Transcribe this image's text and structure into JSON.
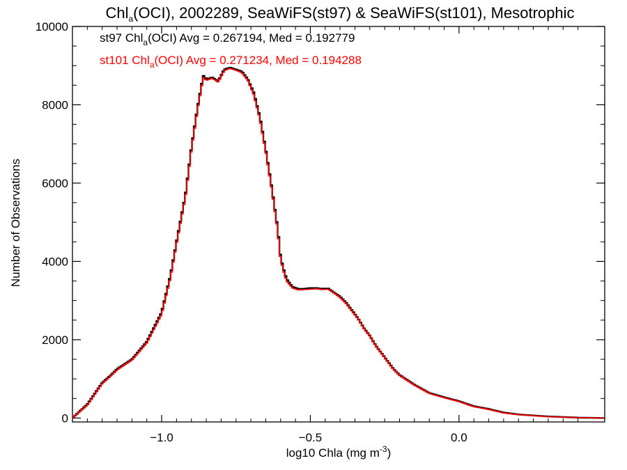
{
  "chart_data": {
    "type": "line",
    "title": {
      "prefix": "Chl",
      "sub": "a",
      "suffix": "(OCI), 2002289, SeaWiFS(st97) & SeaWiFS(st101), Mesotrophic"
    },
    "xlabel": {
      "prefix": "log10 Chla (mg m",
      "sup": "-3",
      "suffix": ")"
    },
    "ylabel": "Number of Observations",
    "xlim": [
      -1.3,
      0.49
    ],
    "ylim": [
      -100,
      10000
    ],
    "x_ticks": [
      -1.0,
      -0.5,
      0.0
    ],
    "x_tick_labels": [
      "−1.0",
      "−0.5",
      "0.0"
    ],
    "y_ticks": [
      0,
      2000,
      4000,
      6000,
      8000,
      10000
    ],
    "y_tick_labels": [
      "0",
      "2000",
      "4000",
      "6000",
      "8000",
      "10000"
    ],
    "legend": [
      {
        "pre": "st97 Chl",
        "sub": "a",
        "post": "(OCI) Avg = 0.267194, Med = 0.192779",
        "color": "#000000"
      },
      {
        "pre": "st101 Chl",
        "sub": "a",
        "post": "(OCI) Avg = 0.271234, Med = 0.194288",
        "color": "#ff0000"
      }
    ],
    "step_style": "histogram",
    "series": [
      {
        "color": "#000000",
        "x": [
          -1.3,
          -1.25,
          -1.2,
          -1.17,
          -1.15,
          -1.1,
          -1.05,
          -1.0,
          -0.97,
          -0.95,
          -0.92,
          -0.9,
          -0.88,
          -0.86,
          -0.85,
          -0.83,
          -0.81,
          -0.79,
          -0.77,
          -0.75,
          -0.73,
          -0.71,
          -0.69,
          -0.67,
          -0.65,
          -0.63,
          -0.61,
          -0.6,
          -0.59,
          -0.58,
          -0.56,
          -0.54,
          -0.52,
          -0.5,
          -0.48,
          -0.46,
          -0.44,
          -0.42,
          -0.4,
          -0.38,
          -0.36,
          -0.34,
          -0.32,
          -0.3,
          -0.28,
          -0.25,
          -0.22,
          -0.2,
          -0.15,
          -0.1,
          -0.05,
          0.0,
          0.05,
          0.1,
          0.15,
          0.2,
          0.3,
          0.4,
          0.49
        ],
        "y": [
          0,
          350,
          900,
          1100,
          1250,
          1500,
          1950,
          2700,
          3650,
          4500,
          5700,
          6900,
          7900,
          8750,
          8650,
          8700,
          8600,
          8900,
          8950,
          8900,
          8850,
          8650,
          8300,
          7700,
          6850,
          5900,
          4850,
          4100,
          3800,
          3550,
          3350,
          3300,
          3300,
          3320,
          3320,
          3300,
          3310,
          3200,
          3100,
          2950,
          2750,
          2550,
          2300,
          2100,
          1850,
          1550,
          1250,
          1100,
          850,
          640,
          530,
          430,
          300,
          230,
          140,
          90,
          40,
          10,
          0
        ]
      },
      {
        "color": "#ff0000",
        "x": [
          -1.3,
          -1.25,
          -1.2,
          -1.17,
          -1.15,
          -1.1,
          -1.05,
          -1.0,
          -0.97,
          -0.95,
          -0.92,
          -0.9,
          -0.88,
          -0.86,
          -0.85,
          -0.83,
          -0.81,
          -0.79,
          -0.77,
          -0.75,
          -0.73,
          -0.71,
          -0.69,
          -0.67,
          -0.65,
          -0.63,
          -0.61,
          -0.6,
          -0.59,
          -0.58,
          -0.56,
          -0.54,
          -0.52,
          -0.5,
          -0.48,
          -0.46,
          -0.44,
          -0.42,
          -0.4,
          -0.38,
          -0.36,
          -0.34,
          -0.32,
          -0.3,
          -0.28,
          -0.25,
          -0.22,
          -0.2,
          -0.15,
          -0.1,
          -0.05,
          0.0,
          0.05,
          0.1,
          0.15,
          0.2,
          0.3,
          0.4,
          0.49
        ],
        "y": [
          0,
          330,
          880,
          1080,
          1230,
          1480,
          1920,
          2650,
          3600,
          4450,
          5650,
          6850,
          7850,
          8700,
          8620,
          8680,
          8580,
          8870,
          8930,
          8880,
          8820,
          8620,
          8250,
          7650,
          6800,
          5850,
          4800,
          4050,
          3750,
          3500,
          3320,
          3270,
          3280,
          3290,
          3300,
          3280,
          3290,
          3190,
          3080,
          2930,
          2730,
          2540,
          2290,
          2090,
          1840,
          1540,
          1240,
          1090,
          840,
          630,
          520,
          420,
          290,
          220,
          130,
          85,
          35,
          8,
          0
        ]
      }
    ]
  }
}
